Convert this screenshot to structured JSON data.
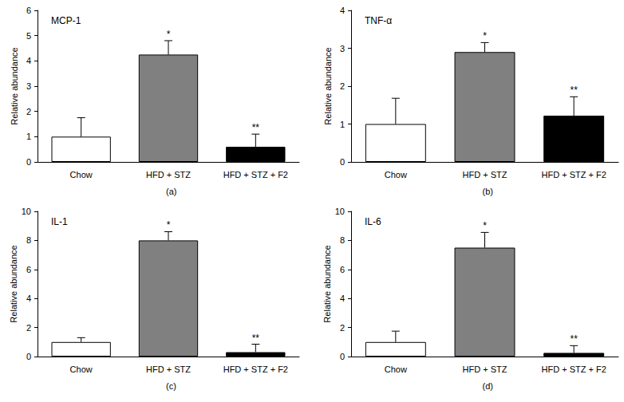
{
  "chart_data": [
    {
      "type": "bar",
      "title": "MCP-1",
      "panel_label": "(a)",
      "y_label": "Relative abundance",
      "categories": [
        "Chow",
        "HFD + STZ",
        "HFD + STZ + F2"
      ],
      "values": [
        1.0,
        4.25,
        0.6
      ],
      "errors": [
        0.75,
        0.55,
        0.5
      ],
      "significance": [
        null,
        "*",
        "**"
      ],
      "colors": [
        "#ffffff",
        "#808080",
        "#000000"
      ],
      "ylim": [
        0,
        6
      ],
      "yticks": [
        0,
        1,
        2,
        3,
        4,
        5,
        6
      ],
      "grid": false
    },
    {
      "type": "bar",
      "title": "TNF-α",
      "panel_label": "(b)",
      "y_label": "Relative abundance",
      "categories": [
        "Chow",
        "HFD + STZ",
        "HFD + STZ + F2"
      ],
      "values": [
        1.0,
        2.9,
        1.22
      ],
      "errors": [
        0.68,
        0.25,
        0.5
      ],
      "significance": [
        null,
        "*",
        "**"
      ],
      "colors": [
        "#ffffff",
        "#808080",
        "#000000"
      ],
      "ylim": [
        0,
        4
      ],
      "yticks": [
        0,
        1,
        2,
        3,
        4
      ],
      "grid": false
    },
    {
      "type": "bar",
      "title": "IL-1",
      "panel_label": "(c)",
      "y_label": "Relative abundance",
      "categories": [
        "Chow",
        "HFD + STZ",
        "HFD + STZ + F2"
      ],
      "values": [
        1.0,
        8.0,
        0.3
      ],
      "errors": [
        0.3,
        0.6,
        0.55
      ],
      "significance": [
        null,
        "*",
        "**"
      ],
      "colors": [
        "#ffffff",
        "#808080",
        "#000000"
      ],
      "ylim": [
        0,
        10
      ],
      "yticks": [
        0,
        2,
        4,
        6,
        8,
        10
      ],
      "grid": false
    },
    {
      "type": "bar",
      "title": "IL-6",
      "panel_label": "(d)",
      "y_label": "Relative abundance",
      "categories": [
        "Chow",
        "HFD + STZ",
        "HFD + STZ + F2"
      ],
      "values": [
        1.0,
        7.5,
        0.25
      ],
      "errors": [
        0.75,
        1.05,
        0.5
      ],
      "significance": [
        null,
        "*",
        "**"
      ],
      "colors": [
        "#ffffff",
        "#808080",
        "#000000"
      ],
      "ylim": [
        0,
        10
      ],
      "yticks": [
        0,
        2,
        4,
        6,
        8,
        10
      ],
      "grid": false
    }
  ]
}
